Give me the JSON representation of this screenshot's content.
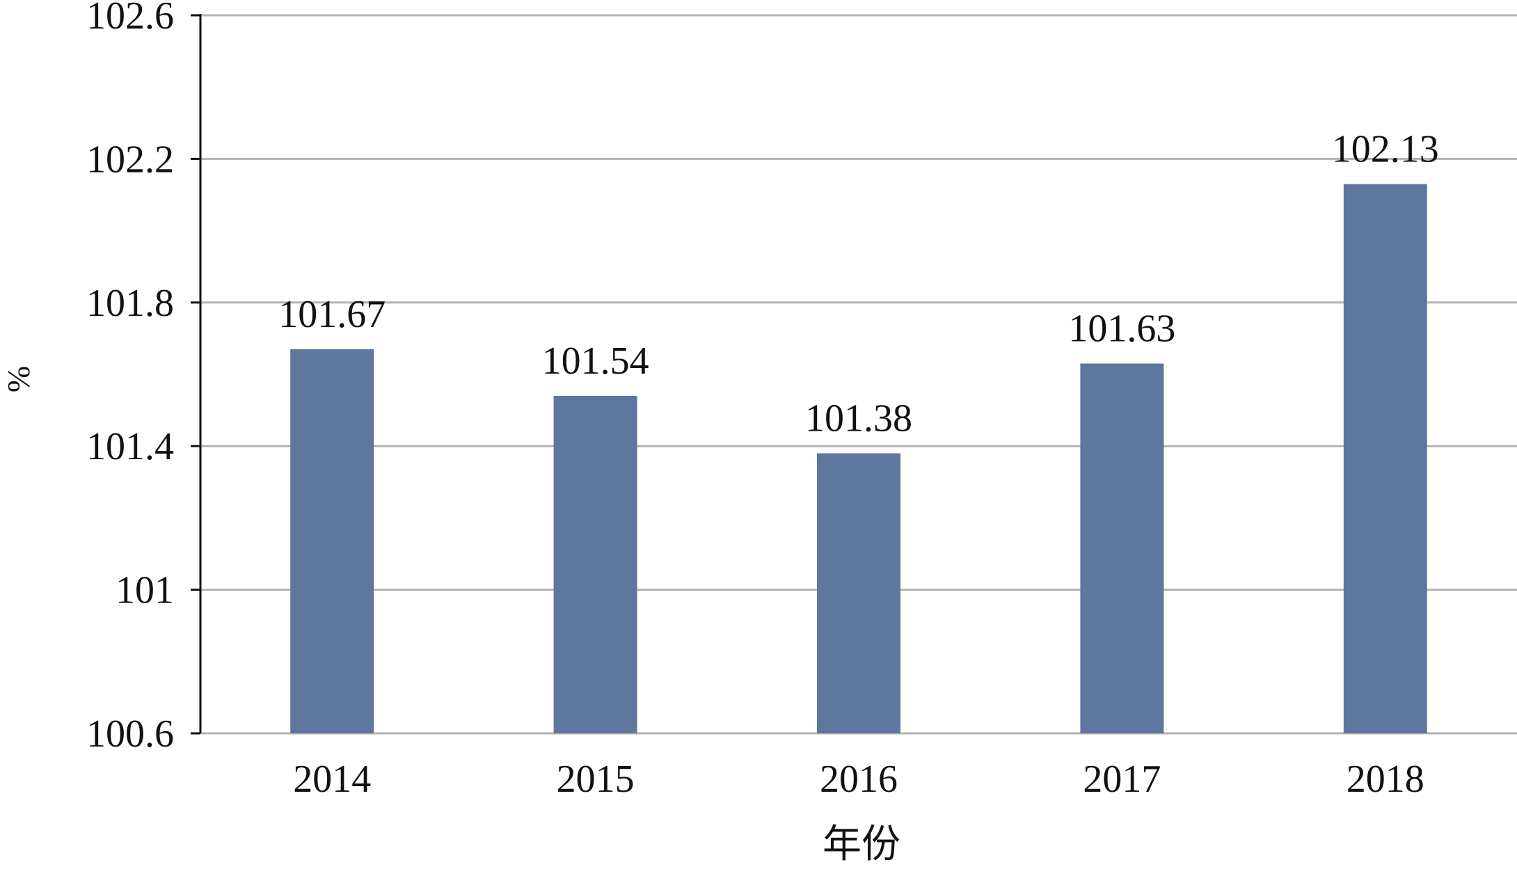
{
  "chart_data": {
    "type": "bar",
    "categories": [
      "2014",
      "2015",
      "2016",
      "2017",
      "2018"
    ],
    "values": [
      101.67,
      101.54,
      101.38,
      101.63,
      102.13
    ],
    "data_labels": [
      "101.67",
      "101.54",
      "101.38",
      "101.63",
      "102.13"
    ],
    "xlabel": "年份",
    "ylabel": "%",
    "ylim": [
      100.6,
      102.6
    ],
    "yticks": [
      100.6,
      101,
      101.4,
      101.8,
      102.2,
      102.6
    ],
    "ytick_labels": [
      "100.6",
      "101",
      "101.4",
      "101.8",
      "102.2",
      "102.6"
    ],
    "grid": true,
    "bar_color": "#5f769f",
    "grid_color": "#b3b3b3"
  }
}
